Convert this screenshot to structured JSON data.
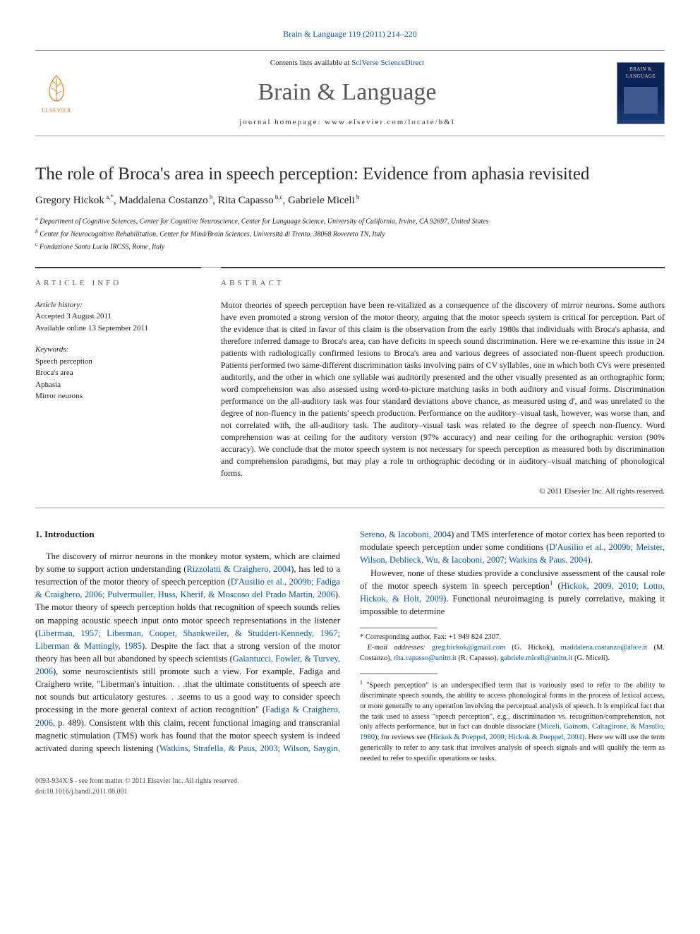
{
  "journal_ref": {
    "text": "Brain & Language 119 (2011) 214–220"
  },
  "header": {
    "contents_prefix": "Contents lists available at ",
    "contents_link": "SciVerse ScienceDirect",
    "journal_title": "Brain & Language",
    "homepage_prefix": "journal homepage: ",
    "homepage_url": "www.elsevier.com/locate/b&l",
    "publisher_name": "ELSEVIER",
    "cover_title": "BRAIN & LANGUAGE"
  },
  "article": {
    "title": "The role of Broca's area in speech perception: Evidence from aphasia revisited",
    "authors_html": "Gregory Hickok<sup> a,*</sup>, Maddalena Costanzo<sup> b</sup>, Rita Capasso<sup> b,c</sup>, Gabriele Miceli<sup> b</sup>",
    "affiliations": [
      {
        "sup": "a",
        "text": "Department of Cognitive Sciences, Center for Cognitive Neuroscience, Center for Language Science, University of California, Irvine, CA 92697, United States"
      },
      {
        "sup": "b",
        "text": "Center for Neurocognitive Rehabilitation, Center for Mind/Brain Sciences, Università di Trento, 38068 Rovereto TN, Italy"
      },
      {
        "sup": "c",
        "text": "Fondazione Santa Lucia IRCSS, Rome, Italy"
      }
    ]
  },
  "article_info": {
    "label": "ARTICLE INFO",
    "history_label": "Article history:",
    "accepted": "Accepted 3 August 2011",
    "online": "Available online 13 September 2011",
    "keywords_label": "Keywords:",
    "keywords": [
      "Speech perception",
      "Broca's area",
      "Aphasia",
      "Mirror neurons"
    ]
  },
  "abstract": {
    "label": "ABSTRACT",
    "text": "Motor theories of speech perception have been re-vitalized as a consequence of the discovery of mirror neurons. Some authors have even promoted a strong version of the motor theory, arguing that the motor speech system is critical for perception. Part of the evidence that is cited in favor of this claim is the observation from the early 1980s that individuals with Broca's aphasia, and therefore inferred damage to Broca's area, can have deficits in speech sound discrimination. Here we re-examine this issue in 24 patients with radiologically confirmed lesions to Broca's area and various degrees of associated non-fluent speech production. Patients performed two same-different discrimination tasks involving pairs of CV syllables, one in which both CVs were presented auditorily, and the other in which one syllable was auditorily presented and the other visually presented as an orthographic form; word comprehension was also assessed using word-to-picture matching tasks in both auditory and visual forms. Discrimination performance on the all-auditory task was four standard deviations above chance, as measured using d', and was unrelated to the degree of non-fluency in the patients' speech production. Performance on the auditory–visual task, however, was worse than, and not correlated with, the all-auditory task. The auditory–visual task was related to the degree of speech non-fluency. Word comprehension was at ceiling for the auditory version (97% accuracy) and near ceiling for the orthographic version (90% accuracy). We conclude that the motor speech system is not necessary for speech perception as measured both by discrimination and comprehension paradigms, but may play a role in orthographic decoding or in auditory–visual matching of phonological forms.",
    "copyright": "© 2011 Elsevier Inc. All rights reserved."
  },
  "body": {
    "section_heading": "1. Introduction",
    "p1_a": "The discovery of mirror neurons in the monkey motor system, which are claimed by some to support action understanding (",
    "p1_link1": "Rizzolatti & Craighero, 2004",
    "p1_b": "), has led to a resurrection of the motor theory of speech perception (",
    "p1_link2": "D'Ausilio et al., 2009b; Fadiga & Craighero, 2006; Pulvermuller, Huss, Kherif, & Moscoso del Prado Martin, 2006",
    "p1_c": "). The motor theory of speech perception holds that recognition of speech sounds relies on mapping acoustic speech input onto motor speech representations in the listener (",
    "p1_link3": "Liberman, 1957; Liberman, Cooper, Shankweiler, & Studdert-Kennedy, 1967; Liberman & Mattingly, 1985",
    "p1_d": "). Despite the fact that a strong version of the motor theory has been all but abandoned by speech scientists (",
    "p1_link4": "Galantucci, Fowler, & Turvey, 2006",
    "p1_e": "), some neuroscientists still promote such a view. For example, Fadiga and Craighero write, \"Liberman's intuition. . .that the ultimate constituents of speech are not sounds but articulatory gestures. . .seems to us a good way to con",
    "p2_a": "sider speech processing in the more general context of action recognition\" (",
    "p2_link1": "Fadiga & Craighero, 2006",
    "p2_b": ", p. 489). Consistent with this claim, recent functional imaging and transcranial magnetic stimulation (TMS) work has found that the motor speech system is indeed activated during speech listening (",
    "p2_link2": "Watkins, Strafella, & Paus, 2003; Wilson, Saygin, Sereno, & Iacoboni, 2004",
    "p2_c": ") and TMS interference of motor cortex has been reported to modulate speech perception under some conditions (",
    "p2_link3": "D'Ausilio et al., 2009b; Meister, Wilson, Deblieck, Wu, & Iacoboni, 2007; Watkins & Paus, 2004",
    "p2_d": ").",
    "p3_a": "However, none of these studies provide a conclusive assessment of the causal role of the motor speech system in speech perception",
    "p3_sup": "1",
    "p3_b": " (",
    "p3_link1": "Hickok, 2009, 2010; Lotto, Hickok, & Holt, 2009",
    "p3_c": "). Functional neuroimaging is purely correlative, making it impossible to determine"
  },
  "footnotes": {
    "corr_marker": "*",
    "corr_text": "Corresponding author. Fax: +1 949 824 2307.",
    "email_label": "E-mail addresses: ",
    "emails": "greg.hickok@gmail.com (G. Hickok), maddalena.costanzo@alice.it (M. Costanzo), rita.capasso@unitn.it (R. Capasso), gabriele.miceli@unitn.it (G. Miceli).",
    "fn1_marker": "1",
    "fn1_text": "\"Speech perception\" is an underspecified term that is variously used to refer to the ability to discriminate speech sounds, the ability to access phonological forms in the process of lexical access, or more generally to any operation involving the perceptual analysis of speech. It is empirical fact that the task used to assess \"speech perception\", e.g., discrimination vs. recognition/comprehension, not only affects performance, but in fact can double dissociate (",
    "fn1_link1": "Miceli, Gainotti, Caltagirone, & Masullo, 1980",
    "fn1_mid": "); for reviews see (",
    "fn1_link2": "Hickok & Poeppel, 2000; Hickok & Poeppel, 2004",
    "fn1_tail": "). Here we will use the term generically to refer to any task that involves analysis of speech signals and will qualify the term as needed to refer to specific operations or tasks."
  },
  "footer": {
    "line1": "0093-934X/$ - see front matter © 2011 Elsevier Inc. All rights reserved.",
    "line2": "doi:10.1016/j.bandl.2011.08.001"
  },
  "colors": {
    "link": "#0057a8",
    "elsevier_orange": "#e67817",
    "rule_gray": "#999999",
    "text": "#1a1a1a"
  }
}
